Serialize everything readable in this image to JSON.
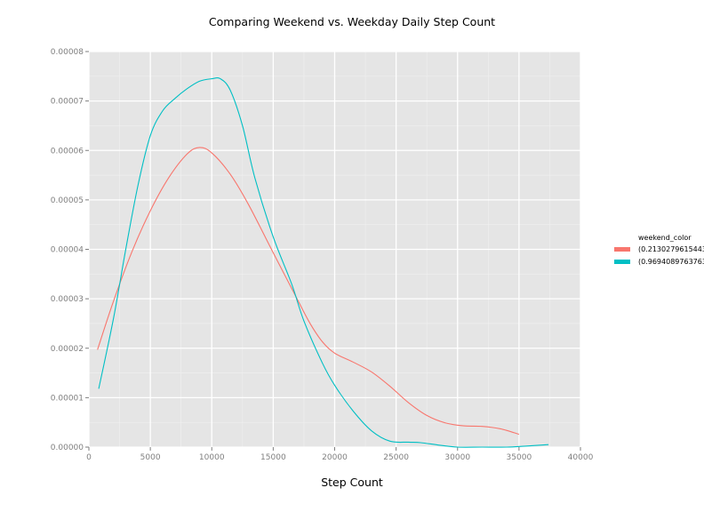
{
  "chart_data": {
    "type": "line",
    "title": "Comparing Weekend vs. Weekday Daily Step Count",
    "xlabel": "Step Count",
    "ylabel": "",
    "xlim": [
      0,
      40000
    ],
    "ylim": [
      0,
      8e-05
    ],
    "x_ticks": [
      0,
      5000,
      10000,
      15000,
      20000,
      25000,
      30000,
      35000,
      40000
    ],
    "x_tick_labels": [
      "0",
      "5000",
      "10000",
      "15000",
      "20000",
      "25000",
      "30000",
      "35000",
      "40000"
    ],
    "y_ticks": [
      0,
      1e-05,
      2e-05,
      3e-05,
      4e-05,
      5e-05,
      6e-05,
      7e-05,
      8e-05
    ],
    "y_tick_labels": [
      "0.00000",
      "0.00001",
      "0.00002",
      "0.00003",
      "0.00004",
      "0.00005",
      "0.00006",
      "0.00007",
      "0.00008"
    ],
    "grid": true,
    "legend_position": "right",
    "legend_title": "weekend_color",
    "series": [
      {
        "name": "(0.2130279615443",
        "color": "#f8766d",
        "points": [
          [
            700,
            1.97e-05
          ],
          [
            2000,
            2.95e-05
          ],
          [
            3500,
            3.95e-05
          ],
          [
            5000,
            4.78e-05
          ],
          [
            6500,
            5.45e-05
          ],
          [
            8000,
            5.93e-05
          ],
          [
            9000,
            6.06e-05
          ],
          [
            10000,
            5.95e-05
          ],
          [
            11500,
            5.52e-05
          ],
          [
            13000,
            4.9e-05
          ],
          [
            15000,
            3.93e-05
          ],
          [
            17000,
            2.97e-05
          ],
          [
            18000,
            2.5e-05
          ],
          [
            19000,
            2.13e-05
          ],
          [
            20000,
            1.9e-05
          ],
          [
            21500,
            1.72e-05
          ],
          [
            23000,
            1.52e-05
          ],
          [
            24500,
            1.23e-05
          ],
          [
            26000,
            9e-06
          ],
          [
            27500,
            6.4e-06
          ],
          [
            29000,
            4.9e-06
          ],
          [
            30500,
            4.3e-06
          ],
          [
            32000,
            4.2e-06
          ],
          [
            33500,
            3.7e-06
          ],
          [
            35000,
            2.6e-06
          ]
        ]
      },
      {
        "name": "(0.9694089763763",
        "color": "#00bfc4",
        "points": [
          [
            800,
            1.18e-05
          ],
          [
            2000,
            2.6e-05
          ],
          [
            3000,
            4e-05
          ],
          [
            4000,
            5.3e-05
          ],
          [
            5000,
            6.3e-05
          ],
          [
            6000,
            6.8e-05
          ],
          [
            7000,
            7.05e-05
          ],
          [
            8000,
            7.25e-05
          ],
          [
            9000,
            7.4e-05
          ],
          [
            10000,
            7.45e-05
          ],
          [
            10700,
            7.45e-05
          ],
          [
            11500,
            7.22e-05
          ],
          [
            12500,
            6.5e-05
          ],
          [
            13500,
            5.45e-05
          ],
          [
            15000,
            4.25e-05
          ],
          [
            16500,
            3.3e-05
          ],
          [
            17500,
            2.55e-05
          ],
          [
            19000,
            1.7e-05
          ],
          [
            20000,
            1.25e-05
          ],
          [
            21500,
            7.3e-06
          ],
          [
            23000,
            3.3e-06
          ],
          [
            24500,
            1.2e-06
          ],
          [
            26000,
            1e-06
          ],
          [
            27000,
            9e-07
          ],
          [
            28500,
            4e-07
          ],
          [
            30000,
            0.0
          ],
          [
            32000,
            0.0
          ],
          [
            34000,
            0.0
          ],
          [
            35500,
            2e-07
          ],
          [
            37400,
            5e-07
          ]
        ]
      }
    ]
  }
}
